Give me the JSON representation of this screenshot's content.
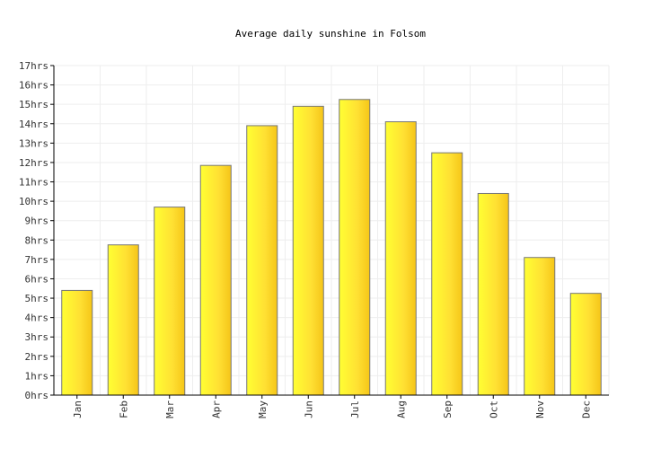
{
  "chart_data": {
    "type": "bar",
    "title": "Average daily sunshine in Folsom",
    "xlabel": "",
    "ylabel": "",
    "categories": [
      "Jan",
      "Feb",
      "Mar",
      "Apr",
      "May",
      "Jun",
      "Jul",
      "Aug",
      "Sep",
      "Oct",
      "Nov",
      "Dec"
    ],
    "values": [
      5.4,
      7.75,
      9.7,
      11.85,
      13.9,
      14.9,
      15.25,
      14.1,
      12.5,
      10.4,
      7.1,
      5.25
    ],
    "y_unit": "hrs",
    "ylim": [
      0,
      17
    ],
    "y_ticks": [
      "0hrs",
      "1hrs",
      "2hrs",
      "3hrs",
      "4hrs",
      "5hrs",
      "6hrs",
      "7hrs",
      "8hrs",
      "9hrs",
      "10hrs",
      "11hrs",
      "12hrs",
      "13hrs",
      "14hrs",
      "15hrs",
      "16hrs",
      "17hrs"
    ],
    "grid": true,
    "legend": "none",
    "colors": {
      "bar_light": "#ffff33",
      "bar_mid": "#ffe033",
      "bar_dark": "#f5c518",
      "bar_edge": "#777777",
      "grid": "#eeeeee",
      "axis": "#000000"
    }
  }
}
